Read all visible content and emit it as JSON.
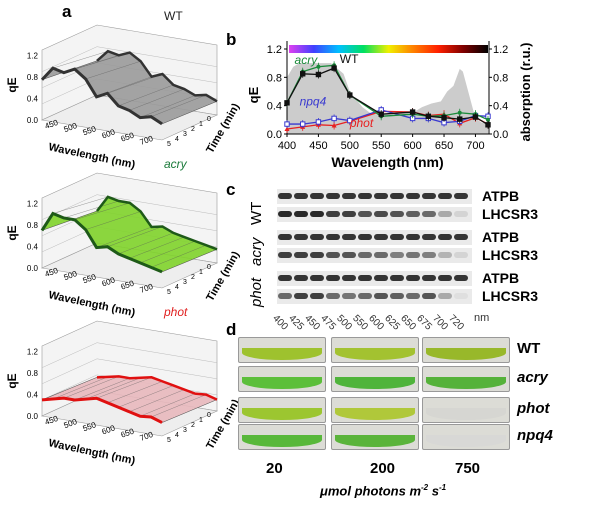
{
  "panels": {
    "a": "a",
    "b": "b",
    "c": "c",
    "d": "d"
  },
  "panel_a": {
    "plots": [
      {
        "label": "WT",
        "label_color": "#222222",
        "surface": "#9a9a9a",
        "edge": "#333333",
        "front_qE": [
          0.75,
          1.0,
          0.95,
          1.05,
          0.9,
          0.6,
          0.7,
          0.5,
          0.45,
          0.35,
          0.4,
          0.3
        ]
      },
      {
        "label": "acry",
        "label_color": "#1a7a3a",
        "surface": "#7fd32a",
        "edge": "#1e5a18",
        "front_qE": [
          0.7,
          1.05,
          1.0,
          1.0,
          0.85,
          0.55,
          0.6,
          0.5,
          0.45,
          0.4,
          0.35,
          0.3
        ]
      },
      {
        "label": "phot",
        "label_color": "#e02020",
        "surface": "#e8b8bc",
        "edge": "#e01010",
        "front_qE": [
          0.3,
          0.35,
          0.4,
          0.4,
          0.45,
          0.5,
          0.45,
          0.4,
          0.35,
          0.3,
          0.32,
          0.25
        ]
      }
    ],
    "ylabel": "qE",
    "xlabel": "Wavelength (nm)",
    "zlabel": "Time (min)",
    "z_ticks": [
      "0.0",
      "0.4",
      "0.8",
      "1.2"
    ],
    "x_ticks": [
      "450",
      "500",
      "550",
      "600",
      "650",
      "700"
    ],
    "t_ticks": [
      "5",
      "4",
      "3",
      "2",
      "1",
      "0"
    ]
  },
  "chart_data": {
    "type": "line",
    "xlabel": "Wavelength (nm)",
    "ylabel": "qE",
    "y2label": "absorption (r.u.)",
    "xlim": [
      400,
      720
    ],
    "ylim": [
      0,
      1.2
    ],
    "y2lim": [
      0,
      1.2
    ],
    "x_ticks": [
      "400",
      "450",
      "500",
      "550",
      "600",
      "650",
      "700"
    ],
    "y_ticks": [
      "0.0",
      "0.4",
      "0.8",
      "1.2"
    ],
    "y2_ticks": [
      "0.0",
      "0.4",
      "0.8",
      "1.2"
    ],
    "x": [
      400,
      425,
      450,
      475,
      500,
      550,
      600,
      625,
      650,
      675,
      700,
      720
    ],
    "series": [
      {
        "name": "WT",
        "color": "#111111",
        "marker": "square",
        "values": [
          0.44,
          0.85,
          0.84,
          0.93,
          0.55,
          0.28,
          0.31,
          0.25,
          0.23,
          0.21,
          0.24,
          0.13
        ]
      },
      {
        "name": "acry",
        "color": "#1a8a3a",
        "marker": "circle",
        "values": [
          0.44,
          0.88,
          0.95,
          0.97,
          0.55,
          0.25,
          0.28,
          0.25,
          0.26,
          0.3,
          0.28,
          0.2
        ]
      },
      {
        "name": "npq4",
        "color": "#3a3ad0",
        "marker": "open-square",
        "values": [
          0.14,
          0.14,
          0.17,
          0.22,
          0.19,
          0.34,
          0.22,
          0.22,
          0.16,
          0.18,
          0.26,
          0.25
        ]
      },
      {
        "name": "phot",
        "color": "#e82020",
        "marker": "triangle",
        "values": [
          0.07,
          0.1,
          0.13,
          0.12,
          0.18,
          0.32,
          0.31,
          0.26,
          0.28,
          0.15,
          0.23,
          0.14
        ]
      }
    ],
    "absorption": {
      "color": "#cccccc",
      "x": [
        400,
        410,
        420,
        440,
        470,
        490,
        500,
        520,
        535,
        560,
        600,
        615,
        630,
        645,
        655,
        665,
        675,
        680,
        690,
        700,
        710,
        720
      ],
      "values": [
        0.8,
        0.95,
        1.0,
        1.0,
        1.0,
        0.85,
        0.6,
        0.38,
        0.28,
        0.28,
        0.3,
        0.38,
        0.43,
        0.46,
        0.6,
        0.68,
        0.92,
        0.88,
        0.55,
        0.22,
        0.16,
        0.15
      ]
    },
    "spectrum_bar": [
      "#e040f0",
      "#4040ff",
      "#00c0ff",
      "#00e060",
      "#f0f000",
      "#ff8000",
      "#ff2000",
      "#800000",
      "#000000"
    ]
  },
  "panel_c": {
    "groups": [
      {
        "strain": "WT",
        "bands": [
          "ATPB",
          "LHCSR3"
        ],
        "lhcsr3": [
          0.9,
          0.9,
          0.9,
          0.8,
          0.8,
          0.7,
          0.75,
          0.7,
          0.65,
          0.6,
          0.3,
          0.1
        ]
      },
      {
        "strain": "acry",
        "bands": [
          "ATPB",
          "LHCSR3"
        ],
        "lhcsr3": [
          0.8,
          0.8,
          0.8,
          0.7,
          0.7,
          0.6,
          0.6,
          0.5,
          0.55,
          0.5,
          0.25,
          0.1
        ]
      },
      {
        "strain": "phot",
        "bands": [
          "ATPB",
          "LHCSR3"
        ],
        "lhcsr3": [
          0.6,
          0.8,
          0.8,
          0.6,
          0.55,
          0.6,
          0.7,
          0.65,
          0.6,
          0.7,
          0.3,
          0.05
        ]
      }
    ],
    "lanes": [
      "400",
      "425",
      "450",
      "475",
      "500",
      "550",
      "600",
      "625",
      "650",
      "675",
      "700",
      "720"
    ],
    "unit": "nm"
  },
  "panel_d": {
    "rows": [
      {
        "strain": "WT",
        "italic": false,
        "colors": [
          "#9ec22e",
          "#a3c230",
          "#98b82a"
        ]
      },
      {
        "strain": "acry",
        "italic": true,
        "colors": [
          "#5cbf3a",
          "#4fb43a",
          "#55b23a"
        ]
      },
      {
        "strain": "phot",
        "italic": true,
        "colors": [
          "#9cc630",
          "#b0c83a",
          "#d6d6d2"
        ]
      },
      {
        "strain": "npq4",
        "italic": true,
        "colors": [
          "#58b83a",
          "#5ab43a",
          "#d8d8d6"
        ]
      }
    ],
    "intensities": [
      "20",
      "200",
      "750"
    ],
    "unit_main": "μmol photons m",
    "unit_sup1": "-2",
    "unit_mid": " s",
    "unit_sup2": "-1"
  }
}
